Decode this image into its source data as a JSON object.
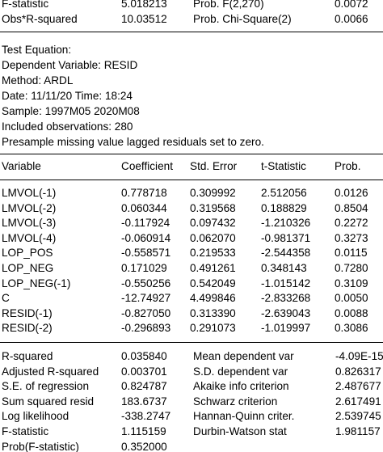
{
  "top_stats": [
    {
      "label": "F-statistic",
      "value": "5.018213",
      "prob_label": "Prob. F(2,270)",
      "prob": "0.0072"
    },
    {
      "label": "Obs*R-squared",
      "value": "10.03512",
      "prob_label": "Prob. Chi-Square(2)",
      "prob": "0.0066"
    }
  ],
  "header_lines": [
    "Test Equation:",
    "Dependent Variable: RESID",
    "Method: ARDL",
    "Date: 11/11/20   Time: 18:24",
    "Sample: 1997M05 2020M08",
    "Included observations: 280",
    "Presample missing value lagged residuals set to zero."
  ],
  "table": {
    "columns": [
      "Variable",
      "Coefficient",
      "Std. Error",
      "t-Statistic",
      "Prob."
    ],
    "rows": [
      [
        "LMVOL(-1)",
        "0.778718",
        "0.309992",
        "2.512056",
        "0.0126"
      ],
      [
        "LMVOL(-2)",
        "0.060344",
        "0.319568",
        "0.188829",
        "0.8504"
      ],
      [
        "LMVOL(-3)",
        "-0.117924",
        "0.097432",
        "-1.210326",
        "0.2272"
      ],
      [
        "LMVOL(-4)",
        "-0.060914",
        "0.062070",
        "-0.981371",
        "0.3273"
      ],
      [
        "LOP_POS",
        "-0.558571",
        "0.219533",
        "-2.544358",
        "0.0115"
      ],
      [
        "LOP_NEG",
        "0.171029",
        "0.491261",
        "0.348143",
        "0.7280"
      ],
      [
        "LOP_NEG(-1)",
        "-0.550256",
        "0.542049",
        "-1.015142",
        "0.3109"
      ],
      [
        "C",
        "-12.74927",
        "4.499846",
        "-2.833268",
        "0.0050"
      ],
      [
        "RESID(-1)",
        "-0.827050",
        "0.313390",
        "-2.639043",
        "0.0088"
      ],
      [
        "RESID(-2)",
        "-0.296893",
        "0.291073",
        "-1.019997",
        "0.3086"
      ]
    ]
  },
  "summary": [
    {
      "label": "R-squared",
      "value": "0.035840",
      "label2": "Mean dependent var",
      "value2": "-4.09E-15"
    },
    {
      "label": "Adjusted R-squared",
      "value": "0.003701",
      "label2": "S.D. dependent var",
      "value2": "0.826317"
    },
    {
      "label": "S.E. of regression",
      "value": "0.824787",
      "label2": "Akaike info criterion",
      "value2": "2.487677"
    },
    {
      "label": "Sum squared resid",
      "value": "183.6737",
      "label2": "Schwarz criterion",
      "value2": "2.617491"
    },
    {
      "label": "Log likelihood",
      "value": "-338.2747",
      "label2": "Hannan-Quinn criter.",
      "value2": "2.539745"
    },
    {
      "label": "F-statistic",
      "value": "1.115159",
      "label2": "Durbin-Watson stat",
      "value2": "1.981157"
    },
    {
      "label": "Prob(F-statistic)",
      "value": "0.352000",
      "label2": "",
      "value2": ""
    }
  ]
}
